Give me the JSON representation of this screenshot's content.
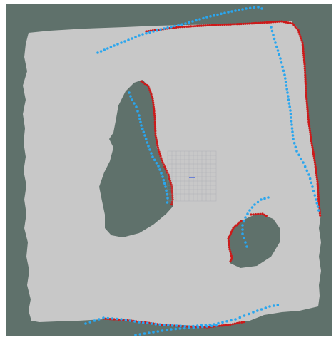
{
  "map": {
    "colors": {
      "frame": "#ffffff",
      "unknown_space": "#5f716b",
      "free_space": "#c8c8c8",
      "obstacle_hits": "#cc1a1a",
      "laser_scan": "#2aa6ee",
      "grid": "#9aa0a6",
      "robot_marker": "#4f6bd8"
    },
    "layers": [
      "unknown-space",
      "free-space",
      "obstacle-islands",
      "obstacle-hit-points",
      "laser-scan-points",
      "local-grid",
      "robot-marker"
    ],
    "obstacles": [
      "left-island",
      "right-island"
    ]
  }
}
